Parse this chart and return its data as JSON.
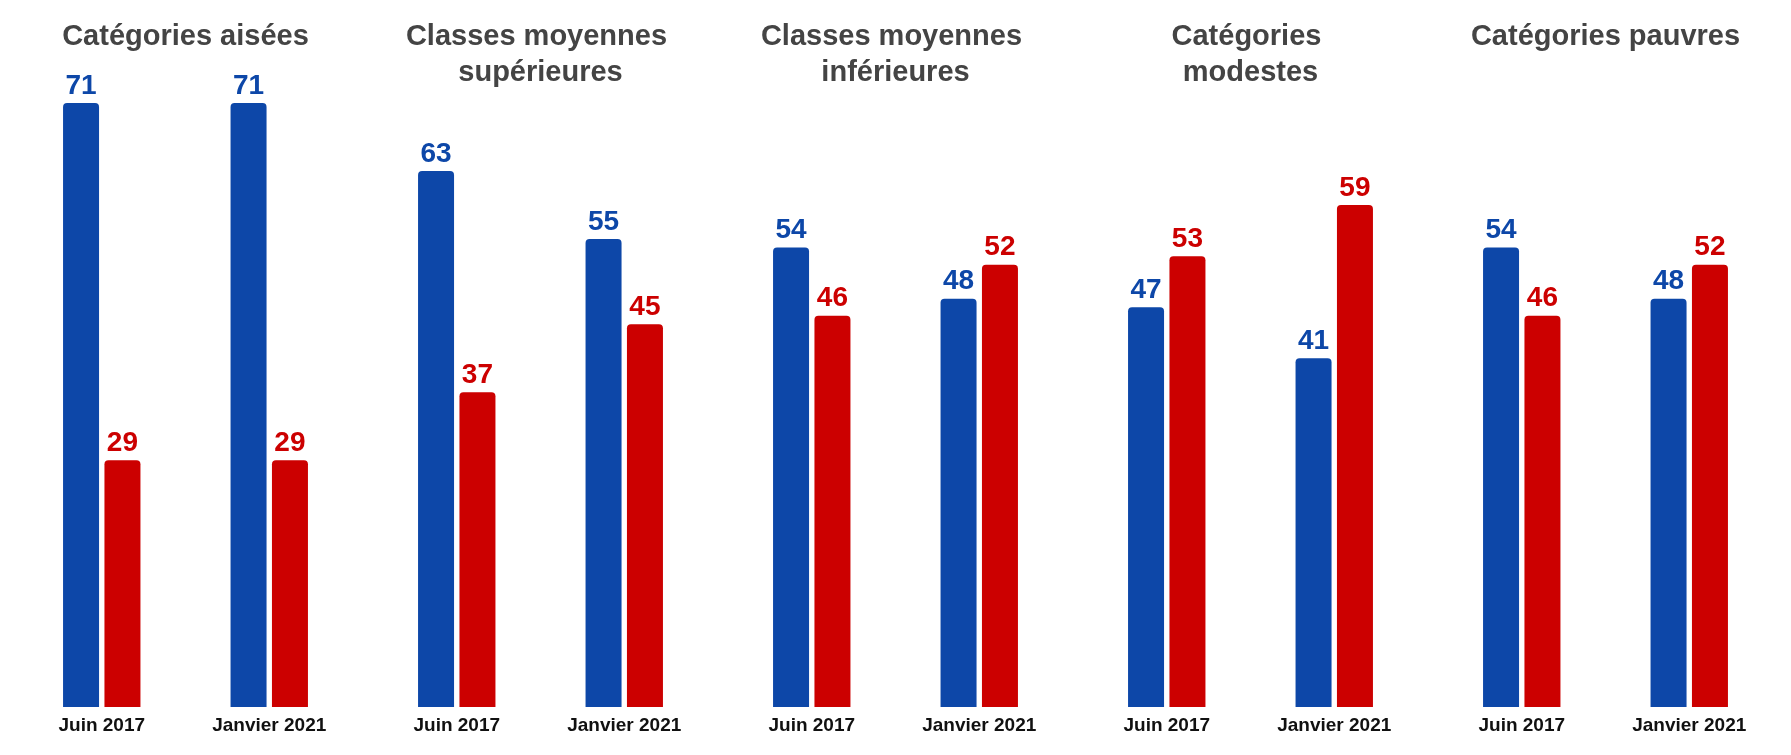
{
  "chart_data": [
    {
      "type": "bar",
      "title": "Catégories aisées",
      "categories": [
        "Juin 2017",
        "Janvier 2021"
      ],
      "series": [
        {
          "color": "#0d47a8",
          "values": [
            71,
            71
          ]
        },
        {
          "color": "#cc0000",
          "values": [
            29,
            29
          ]
        }
      ],
      "data_labels": true
    },
    {
      "type": "bar",
      "title": "Classes moyennes supérieures",
      "categories": [
        "Juin 2017",
        "Janvier 2021"
      ],
      "series": [
        {
          "color": "#0d47a8",
          "values": [
            63,
            55
          ]
        },
        {
          "color": "#cc0000",
          "values": [
            37,
            45
          ]
        }
      ],
      "data_labels": true
    },
    {
      "type": "bar",
      "title": "Classes moyennes inférieures",
      "categories": [
        "Juin 2017",
        "Janvier 2021"
      ],
      "series": [
        {
          "color": "#0d47a8",
          "values": [
            54,
            48
          ]
        },
        {
          "color": "#cc0000",
          "values": [
            46,
            52
          ]
        }
      ],
      "data_labels": true
    },
    {
      "type": "bar",
      "title": "Catégories modestes",
      "categories": [
        "Juin 2017",
        "Janvier 2021"
      ],
      "series": [
        {
          "color": "#0d47a8",
          "values": [
            47,
            41
          ]
        },
        {
          "color": "#cc0000",
          "values": [
            53,
            59
          ]
        }
      ],
      "data_labels": true
    },
    {
      "type": "bar",
      "title": "Catégories pauvres",
      "categories": [
        "Juin 2017",
        "Janvier 2021"
      ],
      "series": [
        {
          "color": "#0d47a8",
          "values": [
            54,
            48
          ]
        },
        {
          "color": "#cc0000",
          "values": [
            46,
            52
          ]
        }
      ],
      "data_labels": true
    }
  ]
}
